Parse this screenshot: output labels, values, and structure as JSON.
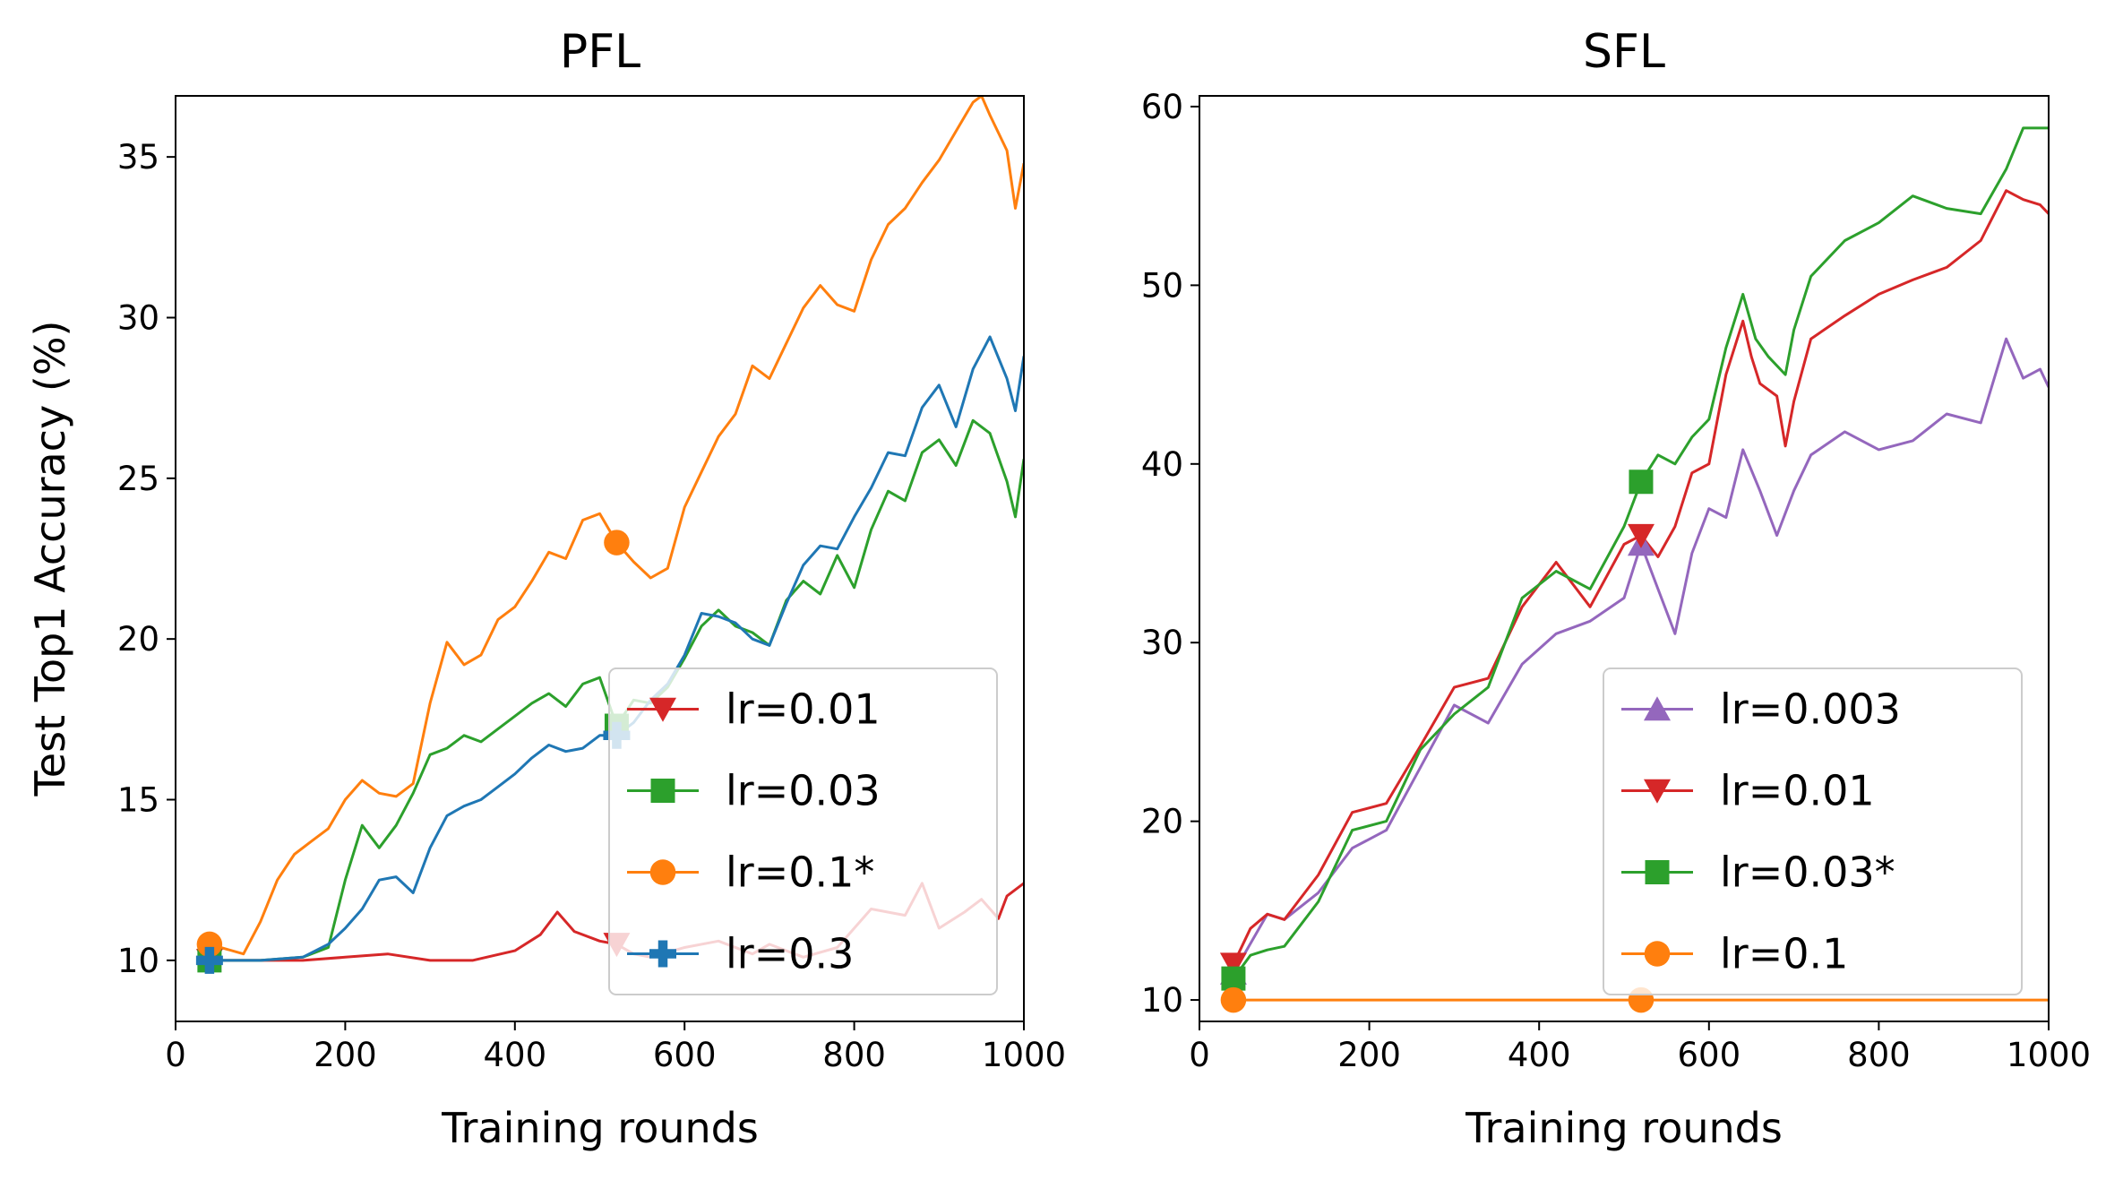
{
  "chart_data": [
    {
      "type": "line",
      "title": "PFL",
      "xlabel": "Training rounds",
      "ylabel": "Test Top1 Accuracy (%)",
      "xlim": [
        0,
        1000
      ],
      "ylim": [
        8.1,
        36.9
      ],
      "xticks": [
        0,
        200,
        400,
        600,
        800,
        1000
      ],
      "yticks": [
        10,
        15,
        20,
        25,
        30,
        35
      ],
      "legend_position": "lower-right",
      "grid": false,
      "series": [
        {
          "name": "lr=0.01",
          "color": "#d62728",
          "marker": "triangle-down",
          "x": [
            40,
            100,
            150,
            200,
            250,
            300,
            350,
            400,
            430,
            450,
            470,
            500,
            520,
            540,
            560,
            600,
            640,
            680,
            700,
            740,
            780,
            820,
            860,
            880,
            900,
            930,
            950,
            970,
            980,
            1000
          ],
          "y": [
            10,
            10,
            10,
            10.1,
            10.2,
            10,
            10,
            10.3,
            10.8,
            11.5,
            10.9,
            10.6,
            10.5,
            10.2,
            10.1,
            10.4,
            10.6,
            10.2,
            10.5,
            10.1,
            10.4,
            11.6,
            11.4,
            12.4,
            11.0,
            11.5,
            11.9,
            11.3,
            12.0,
            12.4
          ]
        },
        {
          "name": "lr=0.03",
          "color": "#2ca02c",
          "marker": "square",
          "x": [
            40,
            100,
            150,
            180,
            200,
            220,
            240,
            260,
            280,
            300,
            320,
            340,
            360,
            380,
            400,
            420,
            440,
            460,
            480,
            500,
            520,
            540,
            560,
            580,
            600,
            620,
            640,
            660,
            680,
            700,
            720,
            740,
            760,
            780,
            800,
            820,
            840,
            860,
            880,
            900,
            920,
            940,
            960,
            980,
            990,
            1000
          ],
          "y": [
            10,
            10,
            10.1,
            10.4,
            12.5,
            14.2,
            13.5,
            14.2,
            15.2,
            16.4,
            16.6,
            17.0,
            16.8,
            17.2,
            17.6,
            18.0,
            18.3,
            17.9,
            18.6,
            18.8,
            17.3,
            18.1,
            18.0,
            18.5,
            19.4,
            20.4,
            20.9,
            20.4,
            20.2,
            19.8,
            21.2,
            21.8,
            21.4,
            22.6,
            21.6,
            23.4,
            24.6,
            24.3,
            25.8,
            26.2,
            25.4,
            26.8,
            26.4,
            24.9,
            23.8,
            25.6
          ]
        },
        {
          "name": "lr=0.1*",
          "color": "#ff7f0e",
          "marker": "circle",
          "x": [
            40,
            80,
            100,
            120,
            140,
            160,
            180,
            200,
            220,
            240,
            260,
            280,
            300,
            320,
            340,
            360,
            380,
            400,
            420,
            440,
            460,
            480,
            500,
            520,
            540,
            560,
            580,
            600,
            620,
            640,
            660,
            680,
            700,
            720,
            740,
            760,
            780,
            800,
            820,
            840,
            860,
            880,
            900,
            920,
            940,
            950,
            960,
            980,
            990,
            1000
          ],
          "y": [
            10.5,
            10.2,
            11.2,
            12.5,
            13.3,
            13.7,
            14.1,
            15.0,
            15.6,
            15.2,
            15.1,
            15.5,
            18.0,
            19.9,
            19.2,
            19.5,
            20.6,
            21.0,
            21.8,
            22.7,
            22.5,
            23.7,
            23.9,
            23.0,
            22.4,
            21.9,
            22.2,
            24.1,
            25.2,
            26.3,
            27.0,
            28.5,
            28.1,
            29.2,
            30.3,
            31.0,
            30.4,
            30.2,
            31.8,
            32.9,
            33.4,
            34.2,
            34.9,
            35.8,
            36.7,
            36.9,
            36.3,
            35.2,
            33.4,
            34.8
          ]
        },
        {
          "name": "lr=0.3",
          "color": "#1f77b4",
          "marker": "plus",
          "x": [
            40,
            100,
            150,
            180,
            200,
            220,
            240,
            260,
            280,
            300,
            320,
            340,
            360,
            380,
            400,
            420,
            440,
            460,
            480,
            500,
            520,
            540,
            560,
            580,
            600,
            620,
            640,
            660,
            680,
            700,
            720,
            740,
            760,
            780,
            800,
            820,
            840,
            860,
            880,
            900,
            920,
            940,
            960,
            980,
            990,
            1000
          ],
          "y": [
            10,
            10,
            10.1,
            10.5,
            11.0,
            11.6,
            12.5,
            12.6,
            12.1,
            13.5,
            14.5,
            14.8,
            15.0,
            15.4,
            15.8,
            16.3,
            16.7,
            16.5,
            16.6,
            17.0,
            17.0,
            17.4,
            18.1,
            18.6,
            19.5,
            20.8,
            20.7,
            20.5,
            20.0,
            19.8,
            21.1,
            22.3,
            22.9,
            22.8,
            23.8,
            24.7,
            25.8,
            25.7,
            27.2,
            27.9,
            26.6,
            28.4,
            29.4,
            28.1,
            27.1,
            28.8
          ]
        }
      ]
    },
    {
      "type": "line",
      "title": "SFL",
      "xlabel": "Training rounds",
      "ylabel": "",
      "xlim": [
        0,
        1000
      ],
      "ylim": [
        8.8,
        60.6
      ],
      "xticks": [
        0,
        200,
        400,
        600,
        800,
        1000
      ],
      "yticks": [
        10,
        20,
        30,
        40,
        50,
        60
      ],
      "legend_position": "lower-right",
      "grid": false,
      "series": [
        {
          "name": "lr=0.003",
          "color": "#9467bd",
          "marker": "triangle-up",
          "x": [
            40,
            80,
            100,
            140,
            180,
            220,
            260,
            300,
            340,
            380,
            420,
            460,
            500,
            520,
            540,
            560,
            580,
            600,
            620,
            640,
            660,
            680,
            700,
            720,
            760,
            800,
            840,
            880,
            920,
            950,
            970,
            990,
            1000
          ],
          "y": [
            11.5,
            14.8,
            14.5,
            16.0,
            18.5,
            19.5,
            23.0,
            26.5,
            25.5,
            28.8,
            30.5,
            31.2,
            32.5,
            35.5,
            33.0,
            30.5,
            35.0,
            37.5,
            37.0,
            40.8,
            38.5,
            36.0,
            38.5,
            40.5,
            41.8,
            40.8,
            41.3,
            42.8,
            42.3,
            47.0,
            44.8,
            45.3,
            44.3
          ]
        },
        {
          "name": "lr=0.01",
          "color": "#d62728",
          "marker": "triangle-down",
          "x": [
            40,
            60,
            80,
            100,
            140,
            180,
            220,
            260,
            300,
            340,
            380,
            420,
            460,
            500,
            520,
            540,
            560,
            580,
            600,
            620,
            640,
            650,
            660,
            680,
            690,
            700,
            720,
            760,
            800,
            840,
            880,
            920,
            950,
            970,
            990,
            1000
          ],
          "y": [
            12.0,
            14.0,
            14.8,
            14.5,
            17.0,
            20.5,
            21.0,
            24.2,
            27.5,
            28.0,
            32.0,
            34.5,
            32.0,
            35.5,
            36.0,
            34.8,
            36.5,
            39.5,
            40.0,
            45.0,
            48.0,
            46.0,
            44.5,
            43.8,
            41.0,
            43.5,
            47.0,
            48.3,
            49.5,
            50.3,
            51.0,
            52.5,
            55.3,
            54.8,
            54.5,
            54.0
          ]
        },
        {
          "name": "lr=0.03*",
          "color": "#2ca02c",
          "marker": "square",
          "x": [
            40,
            60,
            80,
            100,
            140,
            180,
            220,
            260,
            300,
            340,
            380,
            420,
            460,
            500,
            520,
            540,
            560,
            580,
            600,
            620,
            640,
            655,
            670,
            690,
            700,
            720,
            760,
            800,
            840,
            880,
            920,
            950,
            970,
            990,
            1000
          ],
          "y": [
            11.2,
            12.5,
            12.8,
            13.0,
            15.5,
            19.5,
            20.0,
            24.0,
            26.0,
            27.5,
            32.5,
            34.0,
            33.0,
            36.5,
            39.0,
            40.5,
            40.0,
            41.5,
            42.5,
            46.5,
            49.5,
            47.0,
            46.0,
            45.0,
            47.5,
            50.5,
            52.5,
            53.5,
            55.0,
            54.3,
            54.0,
            56.5,
            58.8,
            58.8,
            58.8
          ]
        },
        {
          "name": "lr=0.1",
          "color": "#ff7f0e",
          "marker": "circle",
          "x": [
            40,
            1000
          ],
          "y": [
            10,
            10
          ]
        }
      ]
    }
  ]
}
